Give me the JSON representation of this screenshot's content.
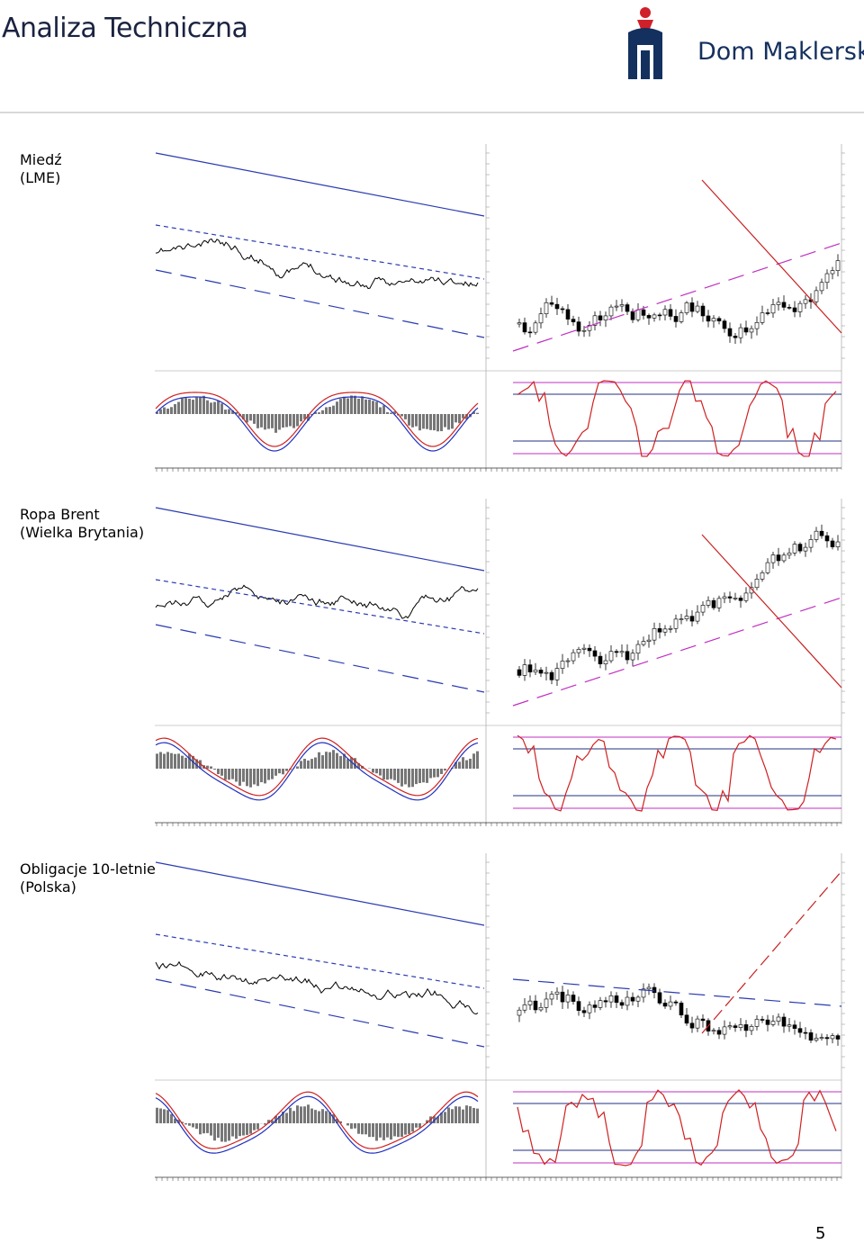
{
  "header": {
    "title": "Analiza Techniczna",
    "brand": "Dom Maklerski"
  },
  "sections": [
    {
      "name": "Miedź",
      "region": "(LME)"
    },
    {
      "name": "Ropa Brent",
      "region": "(Wielka Brytania)"
    },
    {
      "name": "Obligacje 10-letnie",
      "region": "(Polska)"
    }
  ],
  "page_number": "5"
}
